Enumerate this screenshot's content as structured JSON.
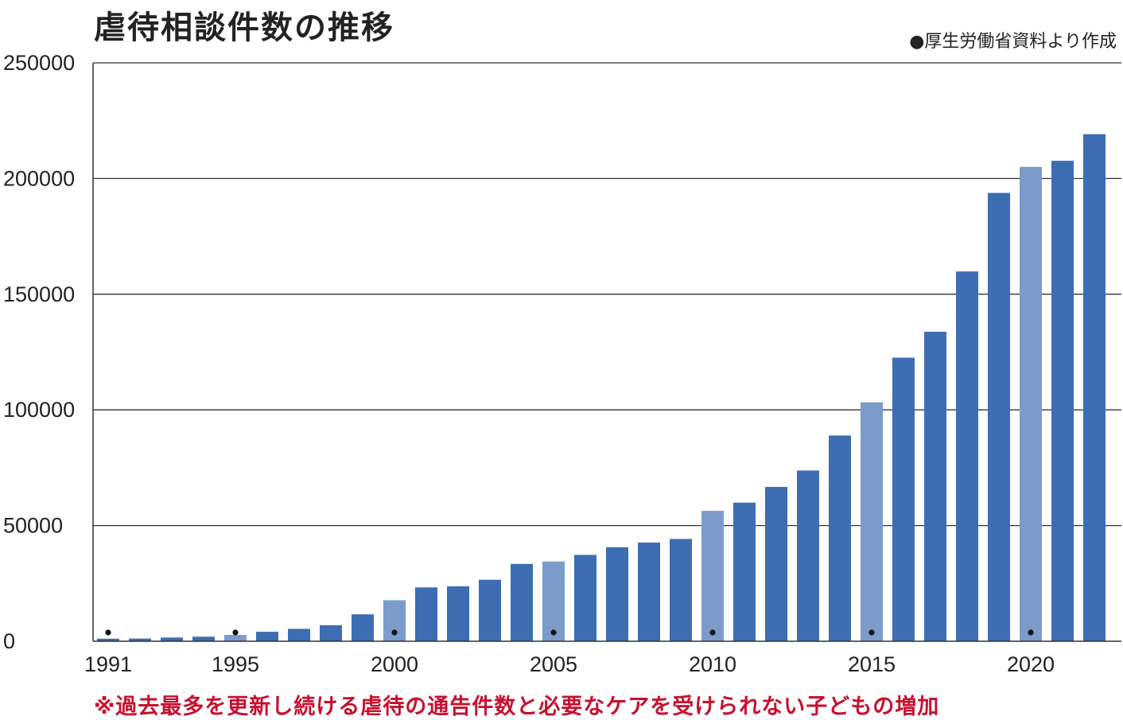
{
  "chart_data": {
    "type": "bar",
    "title": "虐待相談件数の推移",
    "source": "●厚生労働省資料より作成",
    "note": "※過去最多を更新し続ける虐待の通告件数と必要なケアを受けられない子どもの増加",
    "ylim": [
      0,
      250000
    ],
    "yticks": [
      0,
      50000,
      100000,
      150000,
      200000,
      250000
    ],
    "xticks": [
      1991,
      1995,
      2000,
      2005,
      2010,
      2015,
      2020
    ],
    "dot_years": [
      1991,
      1995,
      2000,
      2005,
      2010,
      2015,
      2020
    ],
    "highlight_years": [
      1995,
      2000,
      2005,
      2010,
      2015,
      2020
    ],
    "colors": {
      "bar": "#3d6db3",
      "highlight": "#7b9cca",
      "grid": "#333333",
      "note": "#c8102e",
      "dot": "#111111"
    },
    "x": [
      1991,
      1992,
      1993,
      1994,
      1995,
      1996,
      1997,
      1998,
      1999,
      2000,
      2001,
      2002,
      2003,
      2004,
      2005,
      2006,
      2007,
      2008,
      2009,
      2010,
      2011,
      2012,
      2013,
      2014,
      2015,
      2016,
      2017,
      2018,
      2019,
      2020,
      2021,
      2022
    ],
    "values": [
      1101,
      1171,
      1611,
      1961,
      2722,
      4102,
      5352,
      6932,
      11631,
      17725,
      23274,
      23738,
      26569,
      33408,
      34472,
      37323,
      40639,
      42664,
      44211,
      56384,
      59919,
      66701,
      73802,
      88931,
      103286,
      122575,
      133778,
      159838,
      193780,
      205044,
      207660,
      219170
    ]
  }
}
